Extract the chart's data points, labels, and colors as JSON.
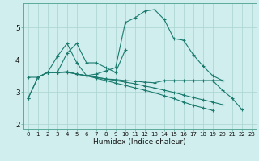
{
  "xlabel": "Humidex (Indice chaleur)",
  "bg_color": "#d0eeee",
  "line_color": "#1a7a6e",
  "grid_color": "#aad4d0",
  "xlim": [
    -0.5,
    23.5
  ],
  "ylim": [
    1.85,
    5.75
  ],
  "xticks": [
    0,
    1,
    2,
    3,
    4,
    5,
    6,
    7,
    8,
    9,
    10,
    11,
    12,
    13,
    14,
    15,
    16,
    17,
    18,
    19,
    20,
    21,
    22,
    23
  ],
  "yticks": [
    2,
    3,
    4,
    5
  ],
  "lines": [
    {
      "x": [
        0,
        1,
        2,
        3,
        4,
        5,
        6,
        7,
        8,
        9,
        10,
        11,
        12,
        13,
        14,
        15,
        16,
        17,
        18,
        19,
        20,
        21,
        22
      ],
      "y": [
        2.8,
        3.45,
        3.6,
        4.1,
        4.5,
        3.9,
        3.5,
        3.55,
        3.65,
        3.75,
        5.15,
        5.3,
        5.5,
        5.55,
        5.25,
        4.65,
        4.6,
        4.15,
        3.8,
        3.5,
        3.35,
        null,
        null
      ]
    },
    {
      "comment": "shorter jagged line: x=2..10, goes 3.6,3.6,4.2,4.5,3.9,3.9,3.75,3.6,4.3",
      "x": [
        2,
        3,
        4,
        5,
        6,
        7,
        8,
        9,
        10
      ],
      "y": [
        3.6,
        3.6,
        4.2,
        4.5,
        3.9,
        3.9,
        3.75,
        3.6,
        4.3
      ]
    },
    {
      "x": [
        0,
        1,
        2,
        3,
        4,
        5,
        6,
        7,
        8,
        9,
        10,
        11,
        12,
        13,
        14,
        15,
        16,
        17,
        18,
        19,
        20,
        21,
        22
      ],
      "y": [
        3.45,
        3.45,
        3.6,
        3.6,
        3.62,
        3.55,
        3.5,
        3.45,
        3.4,
        3.38,
        3.35,
        3.33,
        3.3,
        3.28,
        3.35,
        3.35,
        3.35,
        3.35,
        3.35,
        3.35,
        3.35,
        null,
        null
      ]
    },
    {
      "x": [
        0,
        1,
        2,
        3,
        4,
        5,
        6,
        7,
        8,
        9,
        10,
        11,
        12,
        13,
        14,
        15,
        16,
        17,
        18,
        19,
        20,
        21,
        22
      ],
      "y": [
        2.8,
        3.45,
        3.6,
        3.6,
        3.62,
        3.55,
        3.5,
        3.45,
        3.4,
        3.35,
        3.3,
        3.25,
        3.18,
        3.12,
        3.05,
        2.98,
        2.9,
        2.82,
        2.75,
        2.68,
        2.6,
        null,
        null
      ]
    },
    {
      "x": [
        1,
        2,
        3,
        4,
        5,
        6,
        7,
        8,
        9,
        10,
        11,
        12,
        13,
        14,
        15,
        16,
        17,
        18,
        19,
        20,
        21,
        22
      ],
      "y": [
        3.45,
        3.6,
        3.6,
        3.6,
        3.55,
        3.5,
        3.42,
        3.35,
        3.27,
        3.2,
        3.12,
        3.05,
        2.97,
        2.88,
        2.79,
        2.68,
        2.58,
        2.5,
        2.42,
        null,
        null,
        null
      ]
    },
    {
      "x": [
        19,
        20,
        21,
        22
      ],
      "y": [
        3.35,
        3.05,
        2.8,
        2.45
      ]
    }
  ]
}
